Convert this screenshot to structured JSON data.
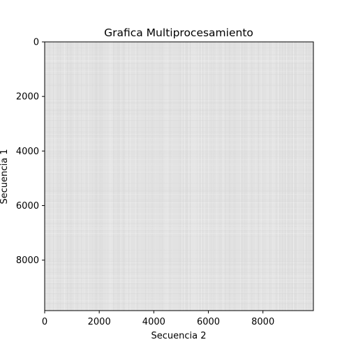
{
  "chart_data": {
    "type": "heatmap",
    "title": "Grafica Multiprocesamiento",
    "xlabel": "Secuencia 2",
    "ylabel": "Secuencia 1",
    "xlim": [
      0,
      9850
    ],
    "ylim": [
      9850,
      0
    ],
    "x_ticks": [
      0,
      2000,
      4000,
      6000,
      8000
    ],
    "y_ticks": [
      0,
      2000,
      4000,
      6000,
      8000
    ],
    "colormap": "gray",
    "base_color": "#e2e2e2",
    "grid": false,
    "legend": "none"
  }
}
